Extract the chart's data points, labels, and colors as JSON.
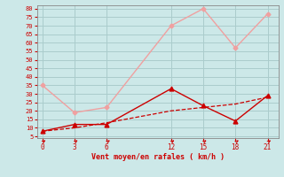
{
  "xlabel": "Vent moyen/en rafales ( km/h )",
  "x": [
    0,
    3,
    6,
    12,
    15,
    18,
    21
  ],
  "line1_y": [
    35,
    19,
    22,
    70,
    80,
    57,
    77
  ],
  "line2_y": [
    8,
    12,
    12,
    33,
    23,
    14,
    29
  ],
  "line3_y": [
    8,
    10,
    13,
    20,
    22,
    24,
    28
  ],
  "line1_color": "#f0a0a0",
  "line2_color": "#cc0000",
  "line3_color": "#cc0000",
  "bg_color": "#cce8e8",
  "grid_color": "#b0d8d8",
  "yticks": [
    5,
    10,
    15,
    20,
    25,
    30,
    35,
    40,
    45,
    50,
    55,
    60,
    65,
    70,
    75,
    80
  ],
  "xticks": [
    0,
    3,
    6,
    12,
    15,
    18,
    21
  ],
  "ylim": [
    4,
    82
  ],
  "xlim": [
    -0.5,
    22
  ]
}
